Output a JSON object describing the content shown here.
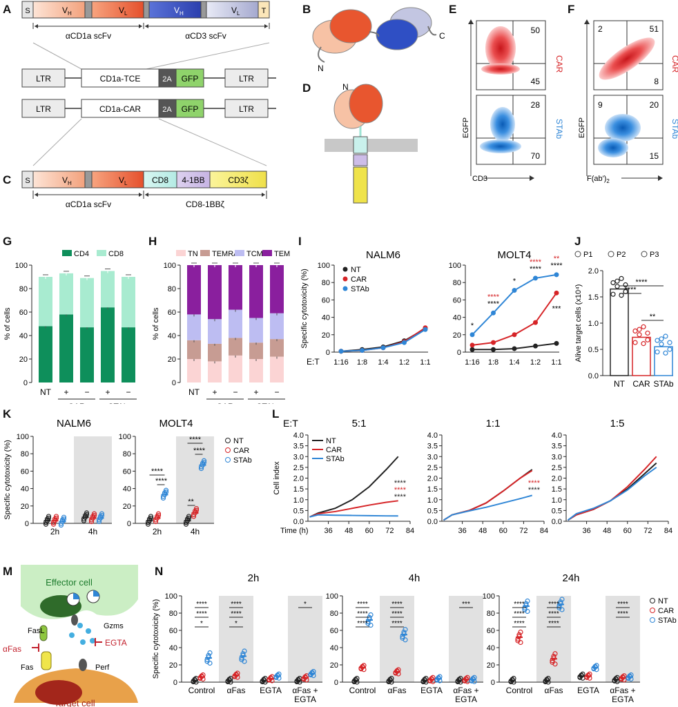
{
  "panel_labels": {
    "A": "A",
    "B": "B",
    "C": "C",
    "D": "D",
    "E": "E",
    "F": "F",
    "G": "G",
    "H": "H",
    "I": "I",
    "J": "J",
    "K": "K",
    "L": "L",
    "M": "M",
    "N": "N"
  },
  "panelA": {
    "top_segments": [
      "S",
      "V",
      "H",
      "V",
      "L",
      "V",
      "H",
      "V",
      "L",
      "T"
    ],
    "vh": "V",
    "vh_sub": "H",
    "vl": "V",
    "vl_sub": "L",
    "s": "S",
    "t": "T",
    "left_label": "αCD1a scFv",
    "right_label": "αCD3 scFv",
    "tce": {
      "ltr": "LTR",
      "name": "CD1a-TCE",
      "twoA": "2A",
      "gfp": "GFP"
    },
    "car": {
      "ltr": "LTR",
      "name": "CD1a-CAR",
      "twoA": "2A",
      "gfp": "GFP"
    }
  },
  "panelC": {
    "s": "S",
    "cd8": "CD8",
    "bb": "4-1BB",
    "cd3z": "CD3ζ",
    "left_label": "αCD1a scFv",
    "right_label": "CD8-1BBζ"
  },
  "panelB": {
    "n": "N",
    "c": "C"
  },
  "panelD": {
    "n": "N"
  },
  "panelE": {
    "xlabel": "CD3",
    "ylabel": "EGFP",
    "car": {
      "tag": "CAR",
      "ur": "50",
      "lr": "45"
    },
    "stab": {
      "tag": "STAb",
      "ur": "28",
      "lr": "70"
    }
  },
  "panelF": {
    "xlabel": "F(ab')",
    "xsub": "2",
    "ylabel": "EGFP",
    "car": {
      "tag": "CAR",
      "ul": "2",
      "ur": "51",
      "lr": "8"
    },
    "stab": {
      "tag": "STAb",
      "ul": "9",
      "ur": "20",
      "lr": "15"
    }
  },
  "colors": {
    "cd4": "#0e8f5b",
    "cd8": "#a8ebd0",
    "tn": "#fbd4d4",
    "temra": "#c79c93",
    "tcm": "#bdbdf2",
    "tem": "#8a1f9e",
    "nt": "#222222",
    "car": "#d62427",
    "stab": "#2f86d6",
    "gray": "#e1e1e1"
  },
  "chart_data": [
    {
      "id": "G",
      "type": "bar",
      "stacked": true,
      "ylabel": "% of cells",
      "yticks": [
        "0",
        "20",
        "40",
        "60",
        "80",
        "100"
      ],
      "ylim": [
        0,
        100
      ],
      "legend": [
        "CD4",
        "CD8"
      ],
      "categories": [
        "NT",
        "+",
        "−",
        "+",
        "−"
      ],
      "groups": [
        "CAR",
        "STAb"
      ],
      "series": [
        {
          "name": "CD4",
          "values": [
            48,
            58,
            47,
            64,
            47
          ]
        },
        {
          "name": "CD8",
          "values": [
            42,
            35,
            42,
            31,
            43
          ]
        }
      ]
    },
    {
      "id": "H",
      "type": "bar",
      "stacked": true,
      "ylabel": "% of cells",
      "yticks": [
        "0",
        "20",
        "40",
        "60",
        "80",
        "100"
      ],
      "ylim": [
        0,
        100
      ],
      "legend": [
        "TN",
        "TEMRA",
        "TCM",
        "TEM"
      ],
      "categories": [
        "NT",
        "+",
        "−",
        "+",
        "−"
      ],
      "groups": [
        "CAR",
        "STAb"
      ],
      "series": [
        {
          "name": "TN",
          "values": [
            20,
            18,
            23,
            20,
            22
          ]
        },
        {
          "name": "TEMRA",
          "values": [
            16,
            15,
            15,
            14,
            15
          ]
        },
        {
          "name": "TCM",
          "values": [
            22,
            21,
            24,
            21,
            22
          ]
        },
        {
          "name": "TEM",
          "values": [
            42,
            46,
            38,
            45,
            41
          ]
        }
      ]
    },
    {
      "id": "I1",
      "type": "line",
      "title": "NALM6",
      "ylabel": "Specific cytotoxicity (%)",
      "xlabel": "E:T",
      "ylim": [
        0,
        100
      ],
      "yticks": [
        "0",
        "20",
        "40",
        "60",
        "80",
        "100"
      ],
      "x": [
        "1:16",
        "1:8",
        "1:4",
        "1:2",
        "1:1"
      ],
      "series": [
        {
          "name": "NT",
          "values": [
            1,
            3,
            6,
            13,
            27
          ]
        },
        {
          "name": "CAR",
          "values": [
            1,
            2,
            5,
            12,
            28
          ]
        },
        {
          "name": "STAb",
          "values": [
            1,
            2,
            5,
            11,
            26
          ]
        }
      ]
    },
    {
      "id": "I2",
      "type": "line",
      "title": "MOLT4",
      "ylim": [
        0,
        100
      ],
      "yticks": [
        "0",
        "20",
        "40",
        "60",
        "80",
        "100"
      ],
      "x": [
        "1:16",
        "1:8",
        "1:4",
        "1:2",
        "1:1"
      ],
      "series": [
        {
          "name": "NT",
          "values": [
            3,
            3,
            4,
            7,
            10
          ]
        },
        {
          "name": "CAR",
          "values": [
            8,
            11,
            20,
            34,
            68
          ]
        },
        {
          "name": "STAb",
          "values": [
            20,
            45,
            71,
            85,
            89
          ]
        }
      ],
      "stars": [
        {
          "x": "1:16",
          "red": "",
          "black": "*"
        },
        {
          "x": "1:8",
          "red": "****",
          "black": "****"
        },
        {
          "x": "1:4",
          "red": "",
          "black": "*"
        },
        {
          "x": "1:2",
          "red": "****",
          "black": "****"
        },
        {
          "x": "1:1",
          "red": "**",
          "black": "****"
        }
      ],
      "car_star": "***"
    },
    {
      "id": "J",
      "type": "bar",
      "ylabel": "Alive target cells (x10⁴)",
      "ylim": [
        0,
        2.0
      ],
      "yticks": [
        "0.0",
        "0.5",
        "1.0",
        "1.5",
        "2.0"
      ],
      "categories": [
        "NT",
        "CAR",
        "STAb"
      ],
      "values": [
        1.65,
        0.73,
        0.55
      ],
      "legend": [
        "P1",
        "P2",
        "P3"
      ],
      "sig": [
        "****",
        "****",
        "**"
      ]
    },
    {
      "id": "K1",
      "type": "scatter",
      "title": "NALM6",
      "ylabel": "Specific cytotoxicity (%)",
      "ylim": [
        0,
        100
      ],
      "yticks": [
        "0",
        "20",
        "40",
        "60",
        "80",
        "100"
      ],
      "categories": [
        "2h",
        "4h"
      ],
      "means": {
        "NT": [
          3,
          7
        ],
        "CAR": [
          3,
          6
        ],
        "STAb": [
          2,
          6
        ]
      }
    },
    {
      "id": "K2",
      "type": "scatter",
      "title": "MOLT4",
      "ylim": [
        0,
        100
      ],
      "yticks": [
        "0",
        "20",
        "40",
        "60",
        "80",
        "100"
      ],
      "categories": [
        "2h",
        "4h"
      ],
      "means": {
        "NT": [
          3,
          3
        ],
        "CAR": [
          6,
          12
        ],
        "STAb": [
          33,
          67
        ]
      },
      "legend": [
        "NT",
        "CAR",
        "STAb"
      ],
      "sig": [
        "****",
        "****",
        "****",
        "****",
        "**"
      ]
    },
    {
      "id": "L",
      "type": "line",
      "ylabel": "Cell index",
      "xlabel": "Time (h)",
      "et_label": "E:T",
      "titles": [
        "5:1",
        "1:1",
        "1:5"
      ],
      "yticks": [
        "0.0",
        "0.5",
        "1.0",
        "1.5",
        "2.0",
        "2.5",
        "3.0",
        "3.5",
        "4.0"
      ],
      "ylim": [
        0,
        4
      ],
      "xticks": [
        "36",
        "48",
        "60",
        "72",
        "84"
      ],
      "legend": [
        "NT",
        "CAR",
        "STAb"
      ],
      "panels": [
        {
          "NT": [
            [
              25,
              0.2
            ],
            [
              30,
              0.38
            ],
            [
              40,
              0.6
            ],
            [
              50,
              1.0
            ],
            [
              60,
              1.6
            ],
            [
              70,
              2.4
            ],
            [
              77,
              3.0
            ]
          ],
          "CAR": [
            [
              25,
              0.2
            ],
            [
              30,
              0.35
            ],
            [
              40,
              0.45
            ],
            [
              50,
              0.6
            ],
            [
              60,
              0.75
            ],
            [
              70,
              0.88
            ],
            [
              77,
              0.95
            ]
          ],
          "STAb": [
            [
              25,
              0.2
            ],
            [
              30,
              0.3
            ],
            [
              40,
              0.28
            ],
            [
              50,
              0.27
            ],
            [
              60,
              0.26
            ],
            [
              70,
              0.25
            ],
            [
              77,
              0.25
            ]
          ],
          "stars": [
            "****",
            "****",
            "****"
          ]
        },
        {
          "NT": [
            [
              25,
              0.05
            ],
            [
              30,
              0.3
            ],
            [
              40,
              0.5
            ],
            [
              50,
              0.85
            ],
            [
              60,
              1.4
            ],
            [
              70,
              2.0
            ],
            [
              77,
              2.4
            ]
          ],
          "CAR": [
            [
              25,
              0.05
            ],
            [
              30,
              0.3
            ],
            [
              40,
              0.5
            ],
            [
              50,
              0.85
            ],
            [
              60,
              1.4
            ],
            [
              70,
              2.0
            ],
            [
              77,
              2.35
            ]
          ],
          "STAb": [
            [
              25,
              0.05
            ],
            [
              30,
              0.3
            ],
            [
              40,
              0.48
            ],
            [
              50,
              0.65
            ],
            [
              60,
              0.85
            ],
            [
              70,
              1.05
            ],
            [
              77,
              1.2
            ]
          ],
          "stars": [
            "****",
            "****"
          ]
        },
        {
          "NT": [
            [
              25,
              0.05
            ],
            [
              30,
              0.3
            ],
            [
              40,
              0.55
            ],
            [
              50,
              0.95
            ],
            [
              60,
              1.5
            ],
            [
              70,
              2.2
            ],
            [
              77,
              2.7
            ]
          ],
          "CAR": [
            [
              25,
              0.05
            ],
            [
              30,
              0.3
            ],
            [
              40,
              0.55
            ],
            [
              50,
              0.95
            ],
            [
              60,
              1.6
            ],
            [
              70,
              2.4
            ],
            [
              77,
              3.0
            ]
          ],
          "STAb": [
            [
              25,
              0.05
            ],
            [
              30,
              0.35
            ],
            [
              40,
              0.6
            ],
            [
              50,
              0.95
            ],
            [
              60,
              1.45
            ],
            [
              70,
              2.1
            ],
            [
              77,
              2.5
            ]
          ],
          "stars": []
        }
      ]
    },
    {
      "id": "N",
      "type": "scatter",
      "ylabel": "Specific cytotoxicity (%)",
      "ylim": [
        0,
        100
      ],
      "yticks": [
        "0",
        "20",
        "40",
        "60",
        "80",
        "100"
      ],
      "titles": [
        "2h",
        "4h",
        "24h"
      ],
      "categories": [
        "Control",
        "αFas",
        "EGTA",
        "αFas + EGTA"
      ],
      "legend": [
        "NT",
        "CAR",
        "STAb"
      ],
      "panels": [
        {
          "NT": [
            2,
            2,
            2,
            2
          ],
          "CAR": [
            6,
            8,
            4,
            5
          ],
          "STAb": [
            28,
            30,
            7,
            10
          ],
          "sig": [
            "****",
            "****",
            "*",
            "****",
            "****",
            "*",
            "*"
          ]
        },
        {
          "NT": [
            2,
            2,
            2,
            2
          ],
          "CAR": [
            17,
            12,
            3,
            3
          ],
          "STAb": [
            72,
            55,
            4,
            3
          ],
          "sig": [
            "****",
            "****",
            "****",
            "****",
            "****",
            "****",
            "***"
          ]
        },
        {
          "NT": [
            2,
            2,
            7,
            3
          ],
          "CAR": [
            52,
            27,
            7,
            5
          ],
          "STAb": [
            88,
            90,
            17,
            6
          ],
          "sig": [
            "****",
            "****",
            "****",
            "****",
            "****",
            "****",
            "****",
            "****"
          ]
        }
      ]
    }
  ],
  "panelM": {
    "effector": "Effector cell",
    "target": "Target cell",
    "fasl": "FasL",
    "fas": "Fas",
    "afas": "αFas",
    "gzms": "Gzms",
    "egta": "EGTA",
    "perf": "Perf"
  }
}
